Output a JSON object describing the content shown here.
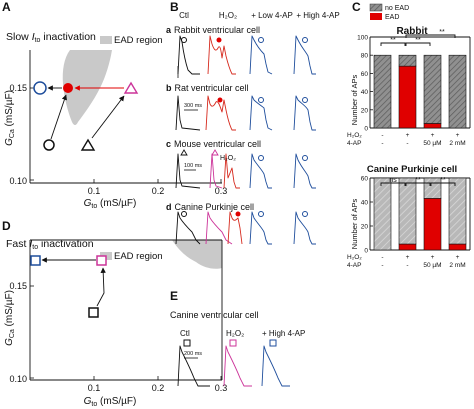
{
  "panelA": {
    "letter": "A",
    "title_main": "Slow ",
    "title_sym": "I",
    "title_sub": "to",
    "title_rest": " inactivation",
    "legend": "EAD region",
    "y_axis": {
      "sym": "G",
      "sub": "Ca",
      "unit": " (mS/µF)"
    },
    "x_axis": {
      "sym": "G",
      "sub": "to",
      "unit": " (mS/µF)"
    },
    "y_ticks": [
      "0.15",
      "0.10"
    ],
    "x_ticks": [
      "0.1",
      "0.2",
      "0.3"
    ]
  },
  "panelD": {
    "letter": "D",
    "title_main": "Fast ",
    "title_sym": "I",
    "title_sub": "to",
    "title_rest": " inactivation",
    "legend": "EAD region",
    "y_axis": {
      "sym": "G",
      "sub": "Ca",
      "unit": " (mS/µF)"
    },
    "x_axis": {
      "sym": "G",
      "sub": "to",
      "unit": " (mS/µF)"
    },
    "y_ticks": [
      "0.15",
      "0.10"
    ],
    "x_ticks": [
      "0.1",
      "0.2",
      "0.3"
    ]
  },
  "panelB": {
    "letter": "B",
    "col_headers": [
      "Ctl",
      "H₂O₂",
      "+ Low 4-AP",
      "+ High 4-AP"
    ],
    "rows": [
      {
        "tag": "a",
        "label": "Rabbit ventricular cell"
      },
      {
        "tag": "b",
        "label": "Rat ventricular cell"
      },
      {
        "tag": "c",
        "label": "Mouse ventricular cell"
      },
      {
        "tag": "d",
        "label": "Canine Purkinje cell"
      }
    ],
    "scale_bar": "300 ms",
    "scale_bar_mouse": "100 ms",
    "inset_label": "H₂O₂"
  },
  "panelE": {
    "letter": "E",
    "title": "Canine ventricular cell",
    "col_headers": [
      "Ctl",
      "H₂O₂",
      "+ High 4-AP"
    ],
    "scale_bar": "200 ms"
  },
  "panelC": {
    "letter": "C",
    "legend": [
      "no EAD",
      "EAD"
    ],
    "colors": {
      "no_ead": "#8f8f8f",
      "ead": "#e00000"
    },
    "rabbit": {
      "title": "Rabbit",
      "ylabel": "Number of APs",
      "y_ticks": [
        "0",
        "20",
        "40",
        "60",
        "80",
        "100"
      ],
      "sig": [
        "**",
        "**",
        "**"
      ],
      "h2o2_row": [
        "-",
        "+",
        "+",
        "+"
      ],
      "ap4_row": [
        "-",
        "-",
        "50 µM",
        "2 mM"
      ],
      "row_labels": [
        "H₂O₂",
        "4-AP"
      ]
    },
    "canine": {
      "title": "Canine Purkinje cell",
      "ylabel": "Number of APs",
      "y_ticks": [
        "0",
        "20",
        "40",
        "60"
      ],
      "sig": [
        "ns",
        "**",
        "**"
      ],
      "h2o2_row": [
        "-",
        "+",
        "+",
        "+"
      ],
      "ap4_row": [
        "-",
        "-",
        "50 µM",
        "2 mM"
      ],
      "row_labels": [
        "H₂O₂",
        "4-AP"
      ]
    }
  },
  "chart_data": [
    {
      "type": "bar",
      "title": "Rabbit",
      "ylabel": "Number of APs",
      "ylim": [
        0,
        100
      ],
      "categories": [
        "H₂O₂ - / 4-AP -",
        "H₂O₂ + / 4-AP -",
        "H₂O₂ + / 4-AP 50 µM",
        "H₂O₂ + / 4-AP 2 mM"
      ],
      "series": [
        {
          "name": "no EAD",
          "values": [
            80,
            12,
            75,
            80
          ]
        },
        {
          "name": "EAD",
          "values": [
            0,
            68,
            5,
            0
          ]
        }
      ],
      "stacked": true
    },
    {
      "type": "bar",
      "title": "Canine Purkinje cell",
      "ylabel": "Number of APs",
      "ylim": [
        0,
        60
      ],
      "categories": [
        "H₂O₂ - / 4-AP -",
        "H₂O₂ + / 4-AP -",
        "H₂O₂ + / 4-AP 50 µM",
        "H₂O₂ + / 4-AP 2 mM"
      ],
      "series": [
        {
          "name": "no EAD",
          "values": [
            60,
            55,
            17,
            55
          ]
        },
        {
          "name": "EAD",
          "values": [
            0,
            5,
            43,
            5
          ]
        }
      ],
      "stacked": true
    }
  ]
}
